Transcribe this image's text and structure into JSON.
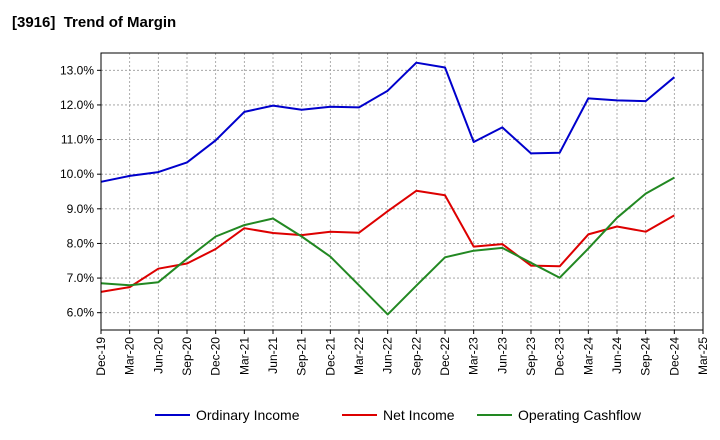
{
  "title": "[3916]  Trend of Margin",
  "chart_data": {
    "type": "line",
    "title": "[3916]  Trend of Margin",
    "xlabel": "",
    "ylabel": "",
    "categories": [
      "Dec-19",
      "Mar-20",
      "Jun-20",
      "Sep-20",
      "Dec-20",
      "Mar-21",
      "Jun-21",
      "Sep-21",
      "Dec-21",
      "Mar-22",
      "Jun-22",
      "Sep-22",
      "Dec-22",
      "Mar-23",
      "Jun-23",
      "Sep-23",
      "Dec-23",
      "Mar-24",
      "Jun-24",
      "Sep-24",
      "Dec-24",
      "Mar-25"
    ],
    "ylim": [
      5.5,
      13.5
    ],
    "yticks": [
      6.0,
      7.0,
      8.0,
      9.0,
      10.0,
      11.0,
      12.0,
      13.0
    ],
    "ytick_labels": [
      "6.0%",
      "7.0%",
      "8.0%",
      "9.0%",
      "10.0%",
      "11.0%",
      "12.0%",
      "13.0%"
    ],
    "grid": true,
    "legend_position": "bottom",
    "series": [
      {
        "name": "Ordinary Income",
        "color": "#0000cc",
        "values": [
          9.78,
          9.95,
          10.06,
          10.34,
          10.98,
          11.8,
          11.98,
          11.86,
          11.95,
          11.93,
          12.41,
          13.22,
          13.08,
          10.93,
          11.35,
          10.6,
          10.62,
          12.19,
          12.13,
          12.11,
          12.8,
          null
        ]
      },
      {
        "name": "Net Income",
        "color": "#dd0000",
        "values": [
          6.6,
          6.74,
          7.27,
          7.42,
          7.84,
          8.44,
          8.3,
          8.24,
          8.34,
          8.31,
          8.93,
          9.52,
          9.39,
          7.91,
          7.98,
          7.36,
          7.34,
          8.26,
          8.49,
          8.34,
          8.81,
          null
        ]
      },
      {
        "name": "Operating Cashflow",
        "color": "#228822",
        "values": [
          6.85,
          6.79,
          6.88,
          7.56,
          8.2,
          8.53,
          8.72,
          8.2,
          7.62,
          6.79,
          5.95,
          6.78,
          7.6,
          7.79,
          7.87,
          7.44,
          7.01,
          7.85,
          8.74,
          9.44,
          9.9,
          null
        ]
      }
    ]
  }
}
